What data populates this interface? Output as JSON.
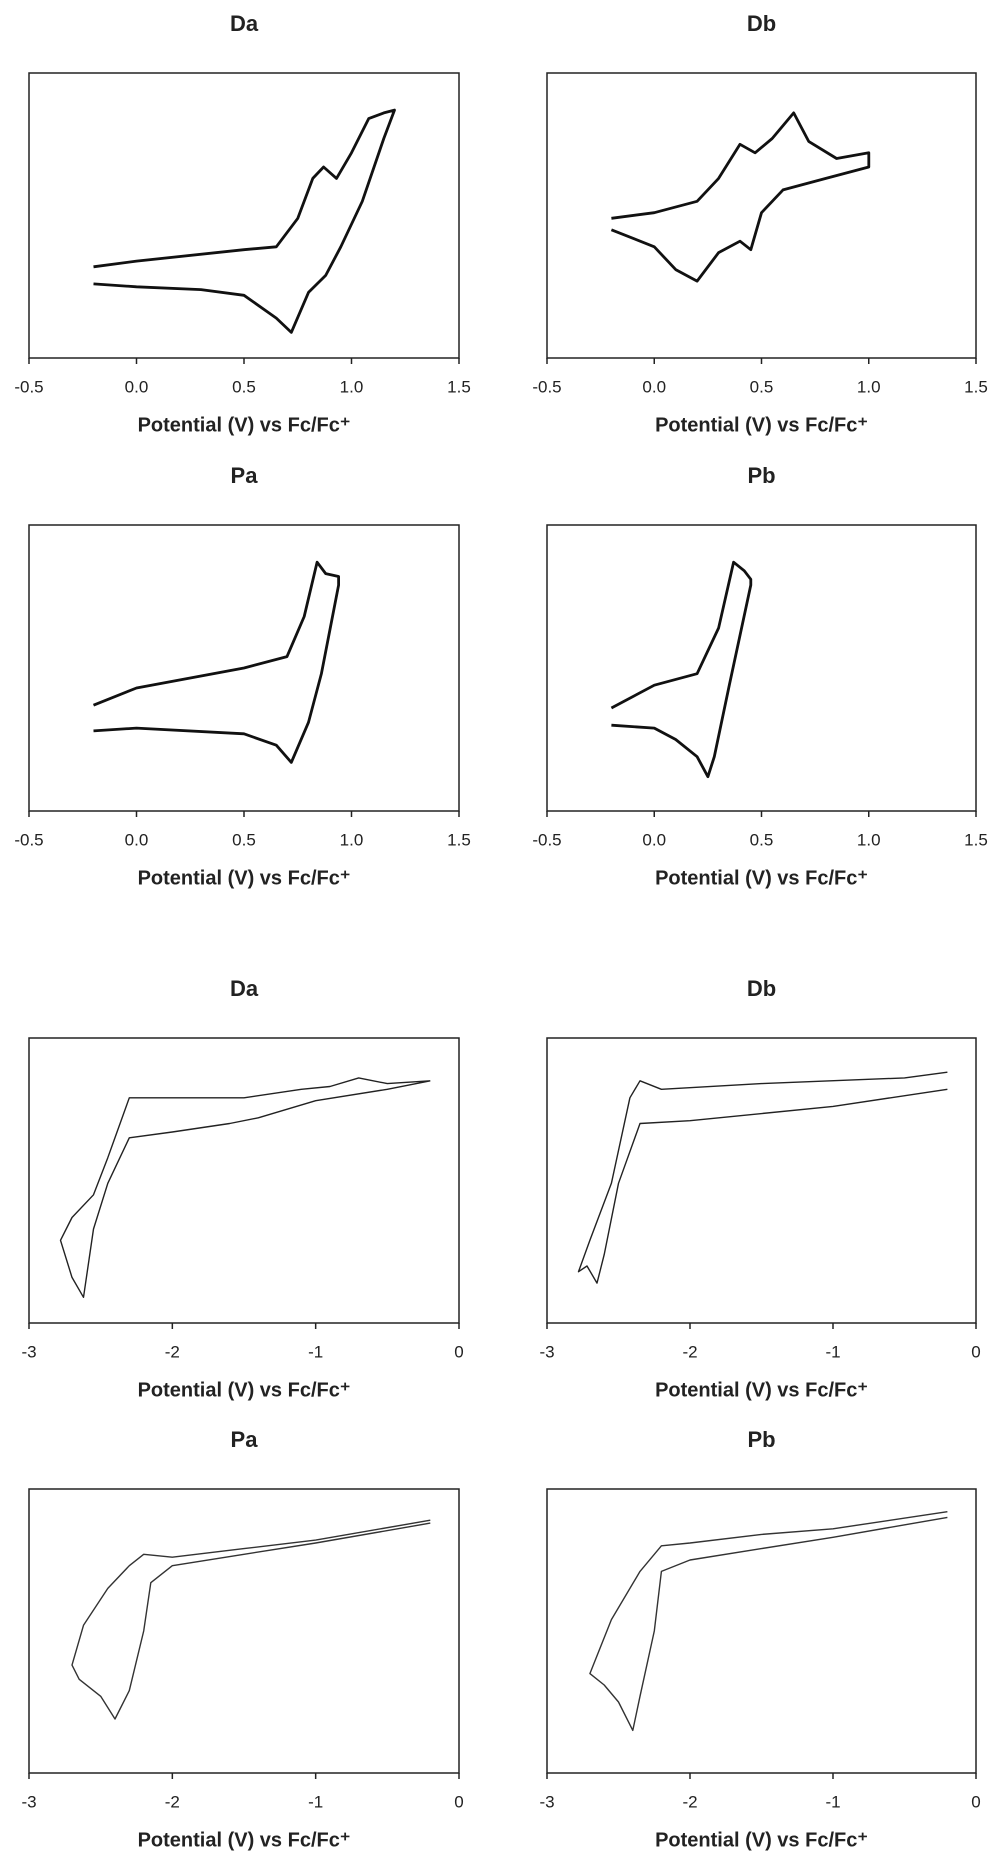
{
  "chart_data": [
    {
      "type": "line",
      "title": "Da",
      "x_label": "Potential (V) vs Fc/Fc⁺",
      "xlim": [
        -0.5,
        1.5
      ],
      "ylim": [
        0,
        100
      ],
      "xticks": [
        -0.5,
        {
          "value": 0,
          "label": "0.0"
        },
        0.5,
        {
          "value": 1,
          "label": "1.0"
        },
        1.5
      ],
      "series": [
        {
          "color": "#111111",
          "x": [
            -0.2,
            0,
            0.5,
            0.65,
            0.75,
            0.82,
            0.87,
            0.93,
            1.0,
            1.08,
            1.15,
            1.2,
            1.15,
            1.05,
            0.95,
            0.88,
            0.8,
            0.72,
            0.65,
            0.5,
            0.3,
            0,
            -0.2
          ],
          "values": [
            32,
            34,
            38,
            39,
            49,
            63,
            67,
            63,
            72,
            84,
            86,
            87,
            77,
            55,
            39,
            29,
            23,
            9,
            14,
            22,
            24,
            25,
            26
          ]
        }
      ]
    },
    {
      "type": "line",
      "title": "Db",
      "x_label": "Potential (V) vs Fc/Fc⁺",
      "xlim": [
        -0.5,
        1.5
      ],
      "ylim": [
        0,
        100
      ],
      "xticks": [
        -0.5,
        {
          "value": 0,
          "label": "0.0"
        },
        0.5,
        {
          "value": 1,
          "label": "1.0"
        },
        1.5
      ],
      "series": [
        {
          "color": "#111111",
          "x": [
            -0.2,
            0,
            0.2,
            0.3,
            0.4,
            0.47,
            0.55,
            0.65,
            0.72,
            0.85,
            1.0,
            1.0,
            0.8,
            0.6,
            0.5,
            0.45,
            0.4,
            0.3,
            0.2,
            0.1,
            0,
            -0.2
          ],
          "values": [
            49,
            51,
            55,
            63,
            75,
            72,
            77,
            86,
            76,
            70,
            72,
            67,
            63,
            59,
            51,
            38,
            41,
            37,
            27,
            31,
            39,
            45
          ]
        }
      ]
    },
    {
      "type": "line",
      "title": "Pa",
      "x_label": "Potential (V) vs Fc/Fc⁺",
      "xlim": [
        -0.5,
        1.5
      ],
      "ylim": [
        0,
        100
      ],
      "xticks": [
        -0.5,
        {
          "value": 0,
          "label": "0.0"
        },
        0.5,
        {
          "value": 1,
          "label": "1.0"
        },
        1.5
      ],
      "series": [
        {
          "color": "#111111",
          "x": [
            -0.2,
            0,
            0.5,
            0.7,
            0.78,
            0.84,
            0.88,
            0.94,
            0.94,
            0.86,
            0.8,
            0.72,
            0.65,
            0.5,
            0,
            -0.2
          ],
          "values": [
            37,
            43,
            50,
            54,
            68,
            87,
            83,
            82,
            79,
            48,
            31,
            17,
            23,
            27,
            29,
            28
          ]
        }
      ]
    },
    {
      "type": "line",
      "title": "Pb",
      "x_label": "Potential (V) vs Fc/Fc⁺",
      "xlim": [
        -0.5,
        1.5
      ],
      "ylim": [
        0,
        100
      ],
      "xticks": [
        -0.5,
        {
          "value": 0,
          "label": "0.0"
        },
        0.5,
        {
          "value": 1,
          "label": "1.0"
        },
        1.5
      ],
      "series": [
        {
          "color": "#111111",
          "x": [
            -0.2,
            0,
            0.2,
            0.3,
            0.37,
            0.42,
            0.45,
            0.45,
            0.35,
            0.28,
            0.25,
            0.2,
            0.1,
            0,
            -0.2
          ],
          "values": [
            36,
            44,
            48,
            64,
            87,
            84,
            81,
            79,
            44,
            19,
            12,
            19,
            25,
            29,
            30
          ]
        }
      ]
    },
    {
      "type": "line",
      "title": "Da",
      "x_label": "Potential (V) vs Fc/Fc⁺",
      "xlim": [
        -3,
        0
      ],
      "ylim": [
        0,
        100
      ],
      "xticks": [
        -3,
        -2,
        -1,
        0
      ],
      "series": [
        {
          "color": "#222222",
          "x": [
            -0.2,
            -0.5,
            -1,
            -1.4,
            -1.6,
            -2,
            -2.3,
            -2.45,
            -2.55,
            -2.62,
            -2.7,
            -2.78,
            -2.7,
            -2.55,
            -2.45,
            -2.3,
            -2,
            -1.5,
            -1.1,
            -0.9,
            -0.7,
            -0.5,
            -0.2
          ],
          "values": [
            85,
            82,
            78,
            72,
            70,
            67,
            65,
            49,
            33,
            9,
            16,
            29,
            37,
            45,
            58,
            79,
            79,
            79,
            82,
            83,
            86,
            84,
            85
          ]
        }
      ]
    },
    {
      "type": "line",
      "title": "Db",
      "x_label": "Potential (V) vs Fc/Fc⁺",
      "xlim": [
        -3,
        0
      ],
      "ylim": [
        0,
        100
      ],
      "xticks": [
        -3,
        -2,
        -1,
        0
      ],
      "series": [
        {
          "color": "#222222",
          "x": [
            -0.2,
            -1,
            -2,
            -2.35,
            -2.5,
            -2.6,
            -2.65,
            -2.72,
            -2.78,
            -2.7,
            -2.55,
            -2.42,
            -2.35,
            -2.2,
            -1.5,
            -0.5,
            -0.2
          ],
          "values": [
            82,
            76,
            71,
            70,
            49,
            24,
            14,
            20,
            18,
            29,
            49,
            79,
            85,
            82,
            84,
            86,
            88
          ]
        }
      ]
    },
    {
      "type": "line",
      "title": "Pa",
      "x_label": "Potential (V) vs Fc/Fc⁺",
      "xlim": [
        -3,
        0
      ],
      "ylim": [
        0,
        100
      ],
      "xticks": [
        -3,
        -2,
        -1,
        0
      ],
      "series": [
        {
          "color": "#333333",
          "x": [
            -0.2,
            -1,
            -1.5,
            -2,
            -2.15,
            -2.2,
            -2.3,
            -2.4,
            -2.5,
            -2.65,
            -2.7,
            -2.62,
            -2.45,
            -2.3,
            -2.2,
            -2,
            -1.5,
            -1,
            -0.2
          ],
          "values": [
            88,
            81,
            77,
            73,
            67,
            50,
            29,
            19,
            27,
            33,
            38,
            52,
            65,
            73,
            77,
            76,
            79,
            82,
            89
          ]
        }
      ]
    },
    {
      "type": "line",
      "title": "Pb",
      "x_label": "Potential (V) vs Fc/Fc⁺",
      "xlim": [
        -3,
        0
      ],
      "ylim": [
        0,
        100
      ],
      "xticks": [
        -3,
        -2,
        -1,
        0
      ],
      "series": [
        {
          "color": "#333333",
          "x": [
            -0.2,
            -1,
            -1.5,
            -2,
            -2.2,
            -2.25,
            -2.35,
            -2.4,
            -2.5,
            -2.6,
            -2.7,
            -2.55,
            -2.35,
            -2.2,
            -2,
            -1.5,
            -1,
            -0.2
          ],
          "values": [
            90,
            83,
            79,
            75,
            71,
            50,
            27,
            15,
            25,
            31,
            35,
            54,
            71,
            80,
            81,
            84,
            86,
            92
          ]
        }
      ]
    }
  ]
}
